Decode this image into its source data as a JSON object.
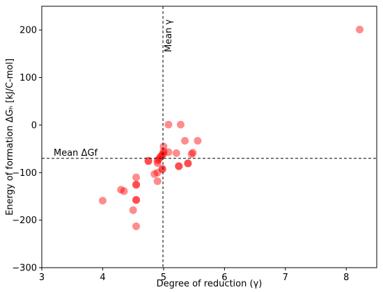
{
  "chart_data": {
    "type": "scatter",
    "title": "",
    "xlabel": "Degree of reduction (γ)",
    "ylabel": "Energy of formation ΔGₕ [kJ/C-mol]",
    "xlim": [
      3,
      8.5
    ],
    "ylim": [
      -300,
      250
    ],
    "xticks": [
      3,
      4,
      5,
      6,
      7,
      8
    ],
    "yticks": [
      -300,
      -200,
      -100,
      0,
      100,
      200
    ],
    "grid": false,
    "color": "#ff0000",
    "point_alpha": 0.45,
    "reference_lines": {
      "mean_gamma": {
        "x": 4.99,
        "label": "Mean γ"
      },
      "mean_dg": {
        "y": -70,
        "label": "Mean ΔGf"
      }
    },
    "series": [
      {
        "x": [
          8.22,
          5.08,
          5.28,
          5.56,
          5.35,
          5.48,
          5.46,
          5.21,
          5.08,
          5.0,
          5.0,
          5.0,
          4.98,
          4.96,
          4.94,
          4.92,
          4.9,
          4.9,
          4.75,
          4.75,
          5.25,
          5.25,
          5.4,
          5.4,
          4.98,
          4.98,
          4.9,
          4.85,
          4.9,
          4.55,
          4.55,
          4.55,
          4.55,
          4.55,
          4.3,
          4.35,
          4.5,
          4.0,
          4.55
        ],
        "y": [
          201,
          1,
          1,
          -33,
          -33,
          -58,
          -61,
          -59,
          -57,
          -45,
          -55,
          -60,
          -62,
          -65,
          -68,
          -72,
          -75,
          -80,
          -75,
          -76,
          -86,
          -87,
          -81,
          -80,
          -93,
          -92,
          -100,
          -103,
          -118,
          -110,
          -125,
          -126,
          -157,
          -158,
          -136,
          -139,
          -179,
          -159,
          -213
        ]
      }
    ]
  }
}
